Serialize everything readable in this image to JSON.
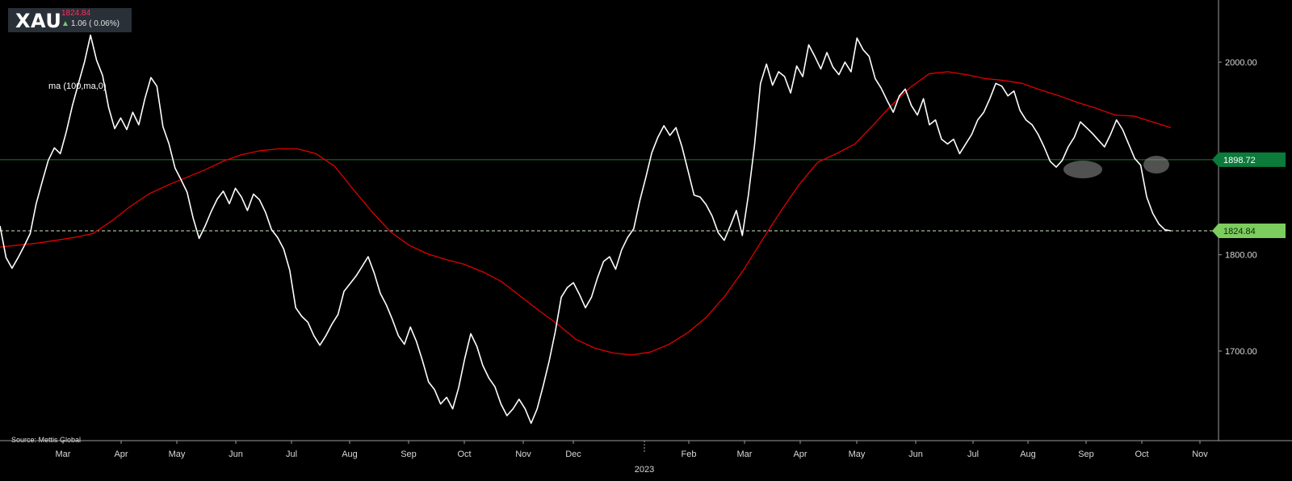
{
  "ticker": {
    "symbol": "XAU",
    "price": "1824.84",
    "change": "1.06 ( 0.06%)",
    "change_icon": "up-arrow-icon",
    "change_color": "#6dd16d",
    "price_color": "#ff2a5f"
  },
  "indicator_label": "ma (100,ma,0)",
  "source": "Source: Mettis Global",
  "colors": {
    "background": "#000000",
    "price_line": "#ffffff",
    "ma_line": "#e00000",
    "support_line": "#1d7a2a",
    "support_badge": "#0b7a3a",
    "last_price_badge": "#7ccc5e"
  },
  "chart_data": {
    "type": "line",
    "title": "",
    "xlabel": "",
    "ylabel": "",
    "y_range": [
      1620,
      2050
    ],
    "y_ticks": [
      "2000.00",
      "1800.00",
      "1700.00"
    ],
    "y_tick_values": [
      2000,
      1800,
      1700
    ],
    "x_ticks": [
      "Mar",
      "Apr",
      "May",
      "Jun",
      "Jul",
      "Aug",
      "Sep",
      "Oct",
      "Nov",
      "Dec",
      "Feb",
      "Mar",
      "Apr",
      "May",
      "Jun",
      "Jul",
      "Aug",
      "Sep",
      "Oct",
      "Nov"
    ],
    "x_year_label": "2023",
    "horizontal_line": {
      "value": 1898.72,
      "label": "1898.72"
    },
    "last_price": {
      "value": 1824.84,
      "label": "1824.84"
    },
    "series": [
      {
        "role": "price",
        "values": [
          1830,
          1797,
          1786,
          1797,
          1809,
          1822,
          1853,
          1876,
          1898,
          1911,
          1905,
          1928,
          1955,
          1978,
          2000,
          2028,
          2002,
          1986,
          1953,
          1931,
          1942,
          1930,
          1948,
          1935,
          1962,
          1984,
          1975,
          1933,
          1915,
          1890,
          1878,
          1865,
          1838,
          1817,
          1830,
          1845,
          1858,
          1866,
          1853,
          1869,
          1860,
          1846,
          1863,
          1857,
          1844,
          1826,
          1818,
          1806,
          1784,
          1745,
          1736,
          1730,
          1716,
          1706,
          1716,
          1728,
          1738,
          1762,
          1770,
          1778,
          1788,
          1798,
          1781,
          1760,
          1748,
          1733,
          1716,
          1707,
          1725,
          1710,
          1690,
          1668,
          1660,
          1645,
          1652,
          1640,
          1662,
          1692,
          1718,
          1705,
          1685,
          1672,
          1663,
          1645,
          1633,
          1640,
          1650,
          1640,
          1625,
          1640,
          1664,
          1690,
          1720,
          1756,
          1766,
          1771,
          1759,
          1745,
          1756,
          1776,
          1793,
          1798,
          1785,
          1805,
          1818,
          1827,
          1856,
          1880,
          1906,
          1922,
          1934,
          1924,
          1932,
          1912,
          1887,
          1862,
          1860,
          1852,
          1840,
          1823,
          1815,
          1830,
          1846,
          1820,
          1862,
          1913,
          1978,
          1998,
          1976,
          1990,
          1985,
          1968,
          1996,
          1985,
          2018,
          2006,
          1993,
          2010,
          1995,
          1987,
          2000,
          1990,
          2025,
          2013,
          2006,
          1983,
          1973,
          1960,
          1948,
          1965,
          1972,
          1955,
          1945,
          1962,
          1935,
          1940,
          1920,
          1915,
          1920,
          1905,
          1915,
          1925,
          1940,
          1948,
          1962,
          1978,
          1975,
          1965,
          1970,
          1950,
          1940,
          1935,
          1925,
          1912,
          1897,
          1891,
          1898,
          1912,
          1922,
          1938,
          1932,
          1926,
          1919,
          1912,
          1925,
          1940,
          1930,
          1915,
          1900,
          1893,
          1860,
          1843,
          1832,
          1826,
          1824.84
        ]
      },
      {
        "role": "moving-average",
        "values": [
          1808,
          1810,
          1812,
          1815,
          1818,
          1822,
          1835,
          1850,
          1863,
          1872,
          1880,
          1888,
          1897,
          1904,
          1908,
          1910,
          1910,
          1905,
          1892,
          1868,
          1845,
          1824,
          1810,
          1801,
          1795,
          1790,
          1782,
          1772,
          1757,
          1742,
          1728,
          1712,
          1703,
          1698,
          1696,
          1699,
          1707,
          1719,
          1735,
          1757,
          1784,
          1815,
          1845,
          1873,
          1896,
          1905,
          1915,
          1935,
          1956,
          1974,
          1988,
          1990,
          1987,
          1983,
          1981,
          1978,
          1971,
          1965,
          1958,
          1952,
          1945,
          1944,
          1938,
          1932
        ]
      }
    ],
    "annotations": [
      "ellipse near Aug low",
      "ellipse near late Sep"
    ]
  }
}
